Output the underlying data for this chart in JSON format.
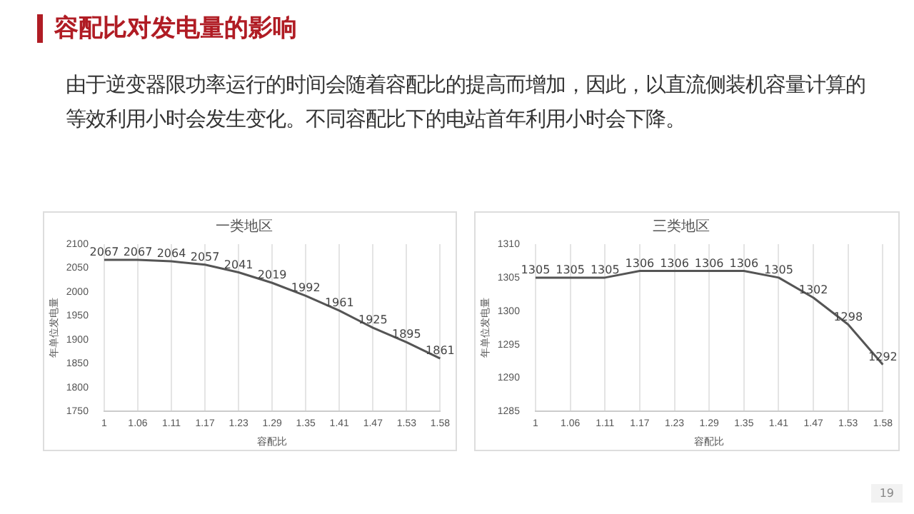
{
  "chart_data": [
    {
      "type": "line",
      "title": "一类地区",
      "xlabel": "容配比",
      "ylabel": "年单位发电量",
      "categories": [
        "1",
        "1.06",
        "1.11",
        "1.17",
        "1.23",
        "1.29",
        "1.35",
        "1.41",
        "1.47",
        "1.53",
        "1.58"
      ],
      "series": [
        {
          "color": "#555555",
          "values": [
            2067,
            2067,
            2064,
            2057,
            2041,
            2019,
            1992,
            1961,
            1925,
            1895,
            1861
          ]
        }
      ],
      "ylim": [
        1750,
        2100
      ],
      "yticks": [
        1750,
        1800,
        1850,
        1900,
        1950,
        2000,
        2050,
        2100
      ],
      "grid": "x",
      "marker": "none",
      "line_style": "solid",
      "data_labels": true,
      "annotations": [
        "容配比对发电量的影响",
        "由于逆变器限功率运行的时间会随着容配比的提高而增加，因此，以直流侧装机容量计算的等效利用小时会发生变化。不同容配比下的电站首年利用小时会下降。"
      ]
    },
    {
      "type": "line",
      "title": "三类地区",
      "xlabel": "容配比",
      "ylabel": "年单位发电量",
      "categories": [
        "1",
        "1.06",
        "1.11",
        "1.17",
        "1.23",
        "1.29",
        "1.35",
        "1.41",
        "1.47",
        "1.53",
        "1.58"
      ],
      "series": [
        {
          "color": "#555555",
          "values": [
            1305,
            1305,
            1305,
            1306,
            1306,
            1306,
            1306,
            1305,
            1302,
            1298,
            1292
          ]
        }
      ],
      "ylim": [
        1285,
        1310
      ],
      "yticks": [
        1285,
        1290,
        1295,
        1300,
        1305,
        1310
      ],
      "grid": "x",
      "marker": "none",
      "line_style": "solid",
      "data_labels": true,
      "annotations": [
        "19"
      ]
    }
  ]
}
